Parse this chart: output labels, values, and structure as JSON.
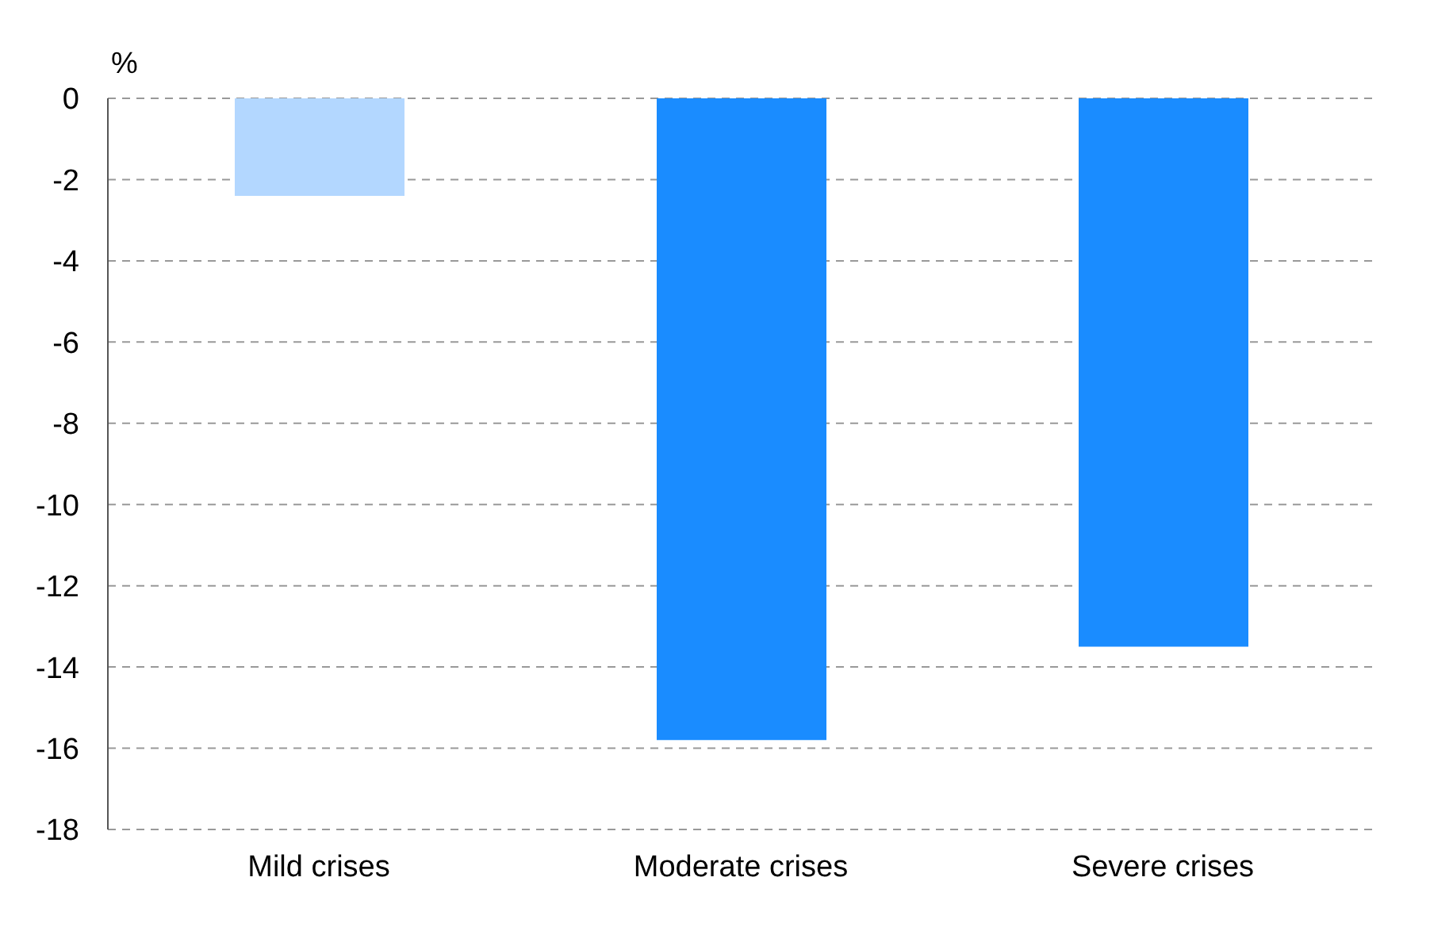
{
  "chart_data": {
    "type": "bar",
    "ylabel": "%",
    "categories": [
      "Mild crises",
      "Moderate crises",
      "Severe crises"
    ],
    "values": [
      -2.4,
      -15.8,
      -13.5
    ],
    "colors": [
      "#b3d7ff",
      "#1a8cff",
      "#1a8cff"
    ],
    "ylim": [
      -18,
      0
    ],
    "yticks": [
      -18,
      -16,
      -14,
      -12,
      -10,
      -8,
      -6,
      -4,
      -2,
      0
    ],
    "grid": "y"
  }
}
